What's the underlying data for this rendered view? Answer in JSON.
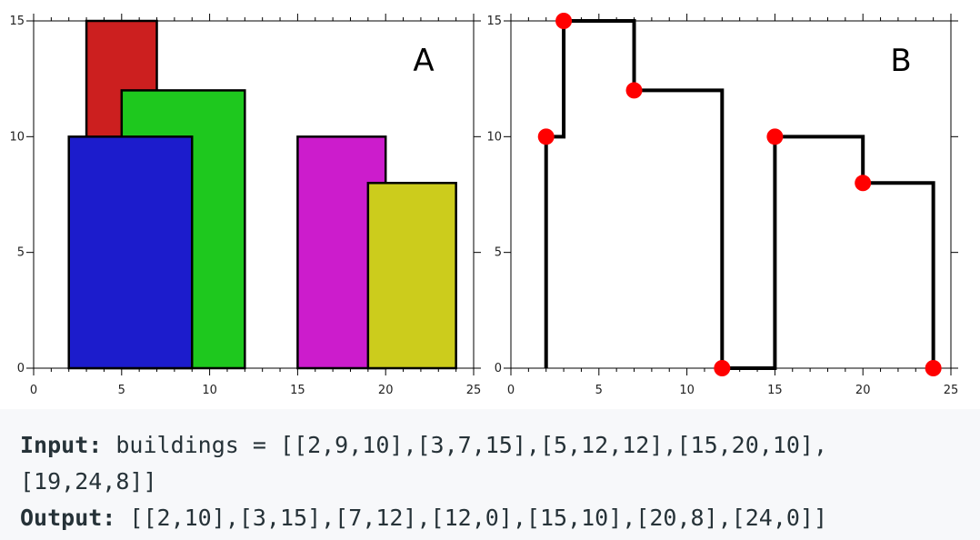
{
  "chart_data": [
    {
      "type": "bar",
      "panel_label": "A",
      "xlim": [
        0,
        25
      ],
      "ylim": [
        0,
        15
      ],
      "x_ticks": [
        0,
        5,
        10,
        15,
        20,
        25
      ],
      "y_ticks": [
        0,
        5,
        10,
        15
      ],
      "grid": false,
      "buildings": [
        {
          "left": 3,
          "right": 7,
          "height": 15,
          "color": "#cc1f1f"
        },
        {
          "left": 5,
          "right": 12,
          "height": 12,
          "color": "#1ec81e"
        },
        {
          "left": 2,
          "right": 9,
          "height": 10,
          "color": "#1c1ccc"
        },
        {
          "left": 15,
          "right": 20,
          "height": 10,
          "color": "#cc1ccc"
        },
        {
          "left": 19,
          "right": 24,
          "height": 8,
          "color": "#cccc1c"
        }
      ]
    },
    {
      "type": "line",
      "panel_label": "B",
      "xlim": [
        0,
        25
      ],
      "ylim": [
        0,
        15
      ],
      "x_ticks": [
        0,
        5,
        10,
        15,
        20,
        25
      ],
      "y_ticks": [
        0,
        5,
        10,
        15
      ],
      "grid": false,
      "line_color": "#000000",
      "point_color": "#ff0000",
      "points": [
        [
          2,
          10
        ],
        [
          3,
          15
        ],
        [
          7,
          12
        ],
        [
          12,
          0
        ],
        [
          15,
          10
        ],
        [
          20,
          8
        ],
        [
          24,
          0
        ]
      ]
    }
  ],
  "example": {
    "input_label": "Input:",
    "input_line1": " buildings = [[2,9,10],[3,7,15],[5,12,12],[15,20,10],",
    "input_line2": "[19,24,8]]",
    "output_label": "Output:",
    "output_value": " [[2,10],[3,15],[7,12],[12,0],[15,10],[20,8],[24,0]]"
  }
}
